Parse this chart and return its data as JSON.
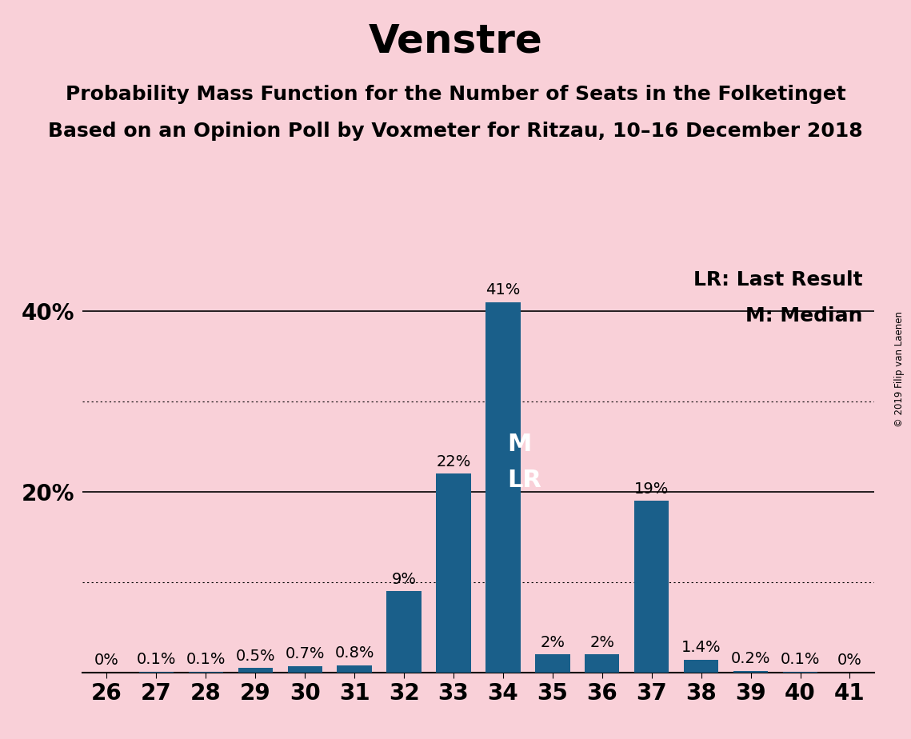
{
  "title": "Venstre",
  "subtitle1": "Probability Mass Function for the Number of Seats in the Folketinget",
  "subtitle2": "Based on an Opinion Poll by Voxmeter for Ritzau, 10–16 December 2018",
  "copyright": "© 2019 Filip van Laenen",
  "seats": [
    26,
    27,
    28,
    29,
    30,
    31,
    32,
    33,
    34,
    35,
    36,
    37,
    38,
    39,
    40,
    41
  ],
  "probabilities": [
    0.0,
    0.1,
    0.1,
    0.5,
    0.7,
    0.8,
    9.0,
    22.0,
    41.0,
    2.0,
    2.0,
    19.0,
    1.4,
    0.2,
    0.1,
    0.0
  ],
  "labels": [
    "0%",
    "0.1%",
    "0.1%",
    "0.5%",
    "0.7%",
    "0.8%",
    "9%",
    "22%",
    "41%",
    "2%",
    "2%",
    "19%",
    "1.4%",
    "0.2%",
    "0.1%",
    "0%"
  ],
  "show_label": [
    true,
    true,
    true,
    true,
    true,
    true,
    true,
    true,
    true,
    true,
    true,
    true,
    true,
    true,
    true,
    true
  ],
  "bar_color": "#1a5f8a",
  "background_color": "#f9d0d8",
  "median_seat": 34,
  "last_result_seat": 34,
  "legend_lr": "LR: Last Result",
  "legend_m": "M: Median",
  "ylim": [
    0,
    45
  ],
  "solid_yticks": [
    20,
    40
  ],
  "dotted_yticks": [
    10,
    30
  ],
  "title_fontsize": 36,
  "subtitle_fontsize": 18,
  "label_fontsize": 14,
  "tick_fontsize": 20,
  "legend_fontsize": 18,
  "ml_label_fontsize": 22,
  "bar_width": 0.7
}
